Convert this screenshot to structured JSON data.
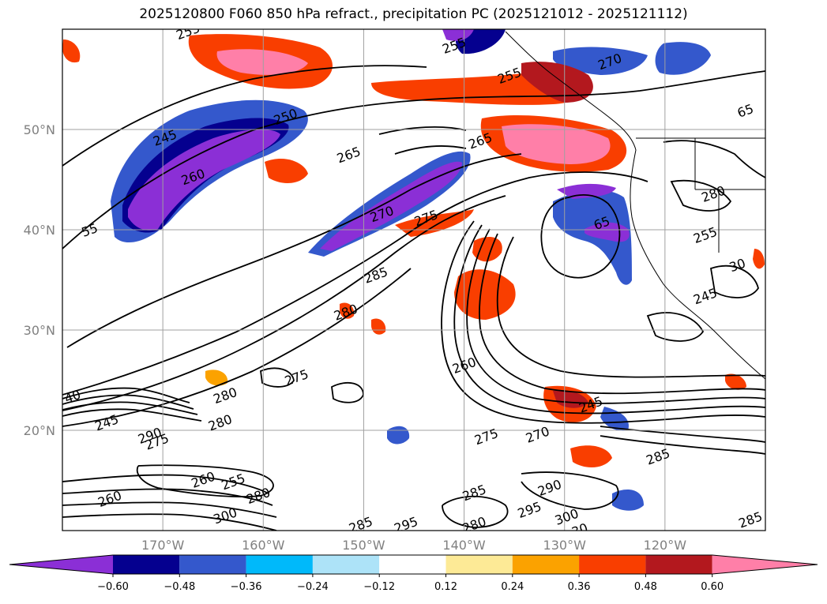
{
  "title": "2025120800 F060 850 hPa refract., precipitation PC (2025121012 - 2025121112)",
  "map": {
    "lat_labels": [
      {
        "text": "50°N",
        "lat": 50
      },
      {
        "text": "40°N",
        "lat": 40
      },
      {
        "text": "30°N",
        "lat": 30
      },
      {
        "text": "20°N",
        "lat": 20
      }
    ],
    "lon_labels": [
      {
        "text": "170°W",
        "lon": -170
      },
      {
        "text": "160°W",
        "lon": -160
      },
      {
        "text": "150°W",
        "lon": -150
      },
      {
        "text": "140°W",
        "lon": -140
      },
      {
        "text": "130°W",
        "lon": -130
      },
      {
        "text": "120°W",
        "lon": -120
      }
    ],
    "extent": {
      "lon_min": -180,
      "lon_max": -110,
      "lat_min": 10,
      "lat_max": 60
    },
    "gridlines": true,
    "contour_labels": [
      {
        "text": "255",
        "lon": -167.5,
        "lat": 59.8
      },
      {
        "text": "250",
        "lon": -157.8,
        "lat": 51.3
      },
      {
        "text": "265",
        "lon": -151.5,
        "lat": 47.5
      },
      {
        "text": "245",
        "lon": -169.8,
        "lat": 49.2
      },
      {
        "text": "260",
        "lon": -167,
        "lat": 45.3
      },
      {
        "text": "55",
        "lon": -177.3,
        "lat": 40
      },
      {
        "text": "270",
        "lon": -148.2,
        "lat": 41.6
      },
      {
        "text": "275",
        "lon": -143.8,
        "lat": 41.2
      },
      {
        "text": "285",
        "lon": -148.8,
        "lat": 35.5
      },
      {
        "text": "280",
        "lon": -151.8,
        "lat": 31.8
      },
      {
        "text": "275",
        "lon": -156.7,
        "lat": 25.3
      },
      {
        "text": "280",
        "lon": -163.8,
        "lat": 23.5
      },
      {
        "text": "290",
        "lon": -171.3,
        "lat": 19.5
      },
      {
        "text": "245",
        "lon": -175.6,
        "lat": 20.8
      },
      {
        "text": "40",
        "lon": -179,
        "lat": 23.4
      },
      {
        "text": "275",
        "lon": -170.6,
        "lat": 18.9
      },
      {
        "text": "280",
        "lon": -164.3,
        "lat": 20.8
      },
      {
        "text": "260",
        "lon": -166,
        "lat": 15.1
      },
      {
        "text": "255",
        "lon": -163,
        "lat": 14.9
      },
      {
        "text": "260",
        "lon": -175.3,
        "lat": 13.2
      },
      {
        "text": "280",
        "lon": -160.5,
        "lat": 13.5
      },
      {
        "text": "300",
        "lon": -163.8,
        "lat": 11.5
      },
      {
        "text": "285",
        "lon": -150.3,
        "lat": 10.6
      },
      {
        "text": "295",
        "lon": -145.8,
        "lat": 10.6
      },
      {
        "text": "280",
        "lon": -139,
        "lat": 10.6
      },
      {
        "text": "285",
        "lon": -139,
        "lat": 13.8
      },
      {
        "text": "295",
        "lon": -133.5,
        "lat": 12.1
      },
      {
        "text": "290",
        "lon": -131.5,
        "lat": 14.3
      },
      {
        "text": "300",
        "lon": -129.8,
        "lat": 11.4
      },
      {
        "text": "30",
        "lon": -128.5,
        "lat": 10.1
      },
      {
        "text": "285",
        "lon": -111.5,
        "lat": 11.1
      },
      {
        "text": "275",
        "lon": -137.8,
        "lat": 19.4
      },
      {
        "text": "270",
        "lon": -132.7,
        "lat": 19.6
      },
      {
        "text": "285",
        "lon": -120.7,
        "lat": 17.4
      },
      {
        "text": "245",
        "lon": -127.4,
        "lat": 22.6
      },
      {
        "text": "260",
        "lon": -140,
        "lat": 26.5
      },
      {
        "text": "265",
        "lon": -138.4,
        "lat": 48.9
      },
      {
        "text": "255",
        "lon": -135.5,
        "lat": 55.4
      },
      {
        "text": "270",
        "lon": -125.5,
        "lat": 56.8
      },
      {
        "text": "255",
        "lon": -141,
        "lat": 58.4
      },
      {
        "text": "65",
        "lon": -112,
        "lat": 51.9
      },
      {
        "text": "280",
        "lon": -115.2,
        "lat": 43.6
      },
      {
        "text": "255",
        "lon": -116,
        "lat": 39.5
      },
      {
        "text": "245",
        "lon": -116,
        "lat": 33.4
      },
      {
        "text": "65",
        "lon": -126.3,
        "lat": 40.7
      },
      {
        "text": "30",
        "lon": -112.8,
        "lat": 36.5
      }
    ]
  },
  "colorbar": {
    "tick_labels": [
      "−0.60",
      "−0.48",
      "−0.36",
      "−0.24",
      "−0.12",
      "0.12",
      "0.24",
      "0.36",
      "0.48",
      "0.60"
    ],
    "colors": [
      "#8b2fd6",
      "#05008f",
      "#3458cc",
      "#00b9fa",
      "#ade3f8",
      "#ffffff",
      "#fdea96",
      "#fba200",
      "#f93e00",
      "#b3181e",
      "#ff7fa8"
    ]
  },
  "legend_colors": {
    "purple": "#8b2fd6",
    "navy": "#05008f",
    "blue": "#3458cc",
    "cyan": "#00b9fa",
    "lightblue": "#ade3f8",
    "yellow": "#fdea96",
    "orange": "#fba200",
    "redorange": "#f93e00",
    "darkred": "#b3181e",
    "pink": "#ff7fa8"
  }
}
